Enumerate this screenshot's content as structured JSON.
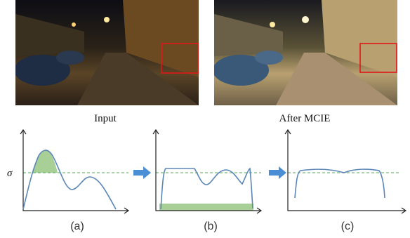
{
  "captions": {
    "input": "Input",
    "after": "After MCIE"
  },
  "sigma": "σ",
  "panels": [
    "(a)",
    "(b)",
    "(c)"
  ]
}
